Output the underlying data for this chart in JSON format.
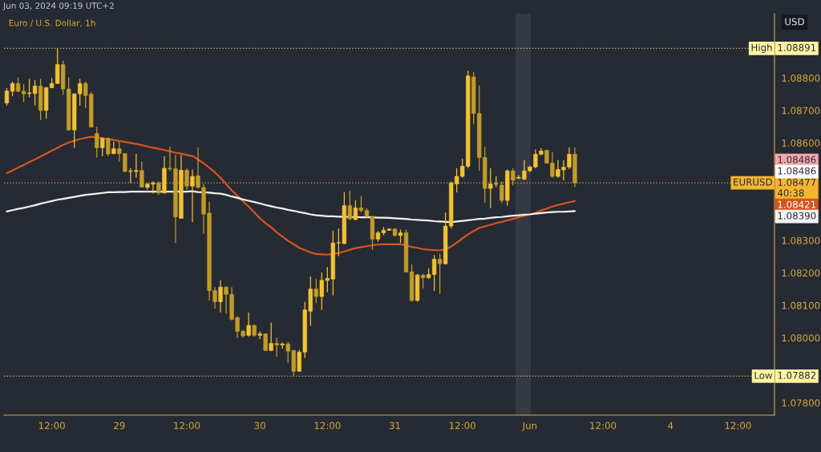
{
  "chart_data": {
    "type": "candlestick",
    "title": "Euro / U.S. Dollar, 1h",
    "ylabel": "USD",
    "annotations": [
      "Jun 03, 2024 09:19 UTC+2",
      "1.08891",
      "1.07882",
      "1.08477",
      "1.08421",
      "1.08390",
      "1.08486",
      "1.08486",
      "40:38"
    ],
    "colors": [
      "#f2c233",
      "#f2c233",
      "#c29b29",
      "#c29b29",
      "#f2c233",
      "#f2c233",
      "#c29b29",
      "#f2c233",
      "#f2c233",
      "#f2c233",
      "#c29b29",
      "#c29b29",
      "#f2c233",
      "#f2c233",
      "#c29b29",
      "#c29b29",
      "#c29b29",
      "#f2c233",
      "#c29b29",
      "#f2c233",
      "#c29b29",
      "#c29b29",
      "#f2c233",
      "#f2c233",
      "#c29b29",
      "#f2c233",
      "#f2c233",
      "#c29b29",
      "#f2c233",
      "#c29b29",
      "#c29b29",
      "#f2c233",
      "#c29b29",
      "#f2c233",
      "#c29b29",
      "#c29b29",
      "#c29b29",
      "#c29b29",
      "#f2c233",
      "#c29b29",
      "#c29b29",
      "#c29b29",
      "#c29b29",
      "#f2c233",
      "#c29b29",
      "#f2c233",
      "#c29b29",
      "#f2c233",
      "#c29b29",
      "#f2c233",
      "#c29b29",
      "#c29b29",
      "#f2c233",
      "#f2c233",
      "#f2c233",
      "#c29b29",
      "#f2c233",
      "#f2c233",
      "#f2c233",
      "#f2c233",
      "#f2c233",
      "#c29b29",
      "#f2c233",
      "#c29b29",
      "#c29b29",
      "#c29b29",
      "#f2c233",
      "#f2c233",
      "#f2c233",
      "#c29b29",
      "#f2c233",
      "#c29b29",
      "#c29b29",
      "#f2c233",
      "#c29b29",
      "#f2c233",
      "#f2c233",
      "#c29b29",
      "#f2c233",
      "#f2c233",
      "#f2c233",
      "#f2c233",
      "#f2c233",
      "#c29b29",
      "#c29b29",
      "#c29b29",
      "#f2c233",
      "#f2c233",
      "#c29b29",
      "#f2c233",
      "#c29b29",
      "#f2c233",
      "#f2c233",
      "#f2c233",
      "#f2c233",
      "#f2c233",
      "#c29b29",
      "#c29b29",
      "#f2c233",
      "#f2c233",
      "#f2c233",
      "#c29b29",
      null,
      null,
      null,
      null,
      null,
      null,
      null,
      null,
      null,
      null,
      null,
      null,
      null,
      null,
      null,
      null,
      null,
      null,
      null,
      null,
      null,
      null,
      null,
      null,
      null,
      null,
      null,
      null,
      null,
      null,
      null,
      null,
      null,
      null,
      null
    ],
    "categories": [
      null,
      null,
      null,
      null,
      null,
      null,
      null,
      null,
      "12:00",
      null,
      null,
      null,
      null,
      null,
      null,
      null,
      null,
      null,
      null,
      null,
      "29",
      null,
      null,
      null,
      null,
      null,
      null,
      null,
      null,
      null,
      null,
      null,
      "12:00",
      null,
      null,
      null,
      null,
      null,
      null,
      null,
      null,
      null,
      null,
      null,
      null,
      "30",
      null,
      null,
      null,
      null,
      null,
      null,
      null,
      null,
      null,
      null,
      null,
      "12:00",
      null,
      null,
      null,
      null,
      null,
      null,
      null,
      null,
      null,
      null,
      null,
      "31",
      null,
      null,
      null,
      null,
      null,
      null,
      null,
      null,
      null,
      null,
      null,
      "12:00",
      null,
      null,
      null,
      null,
      null,
      null,
      null,
      null,
      null,
      null,
      null,
      "Jun",
      null,
      null,
      null,
      null,
      null,
      null,
      null,
      null,
      null,
      null,
      null,
      null,
      "12:00",
      null,
      null,
      null,
      null,
      null,
      null,
      null,
      null,
      null,
      null,
      null,
      "4",
      null,
      null,
      null,
      null,
      null,
      null,
      null,
      null,
      null,
      null,
      null,
      "12:00",
      null,
      null,
      null,
      null,
      null,
      null
    ],
    "ohlc": [
      [
        1.08723,
        1.08769,
        1.08715,
        1.0876
      ],
      [
        1.08759,
        1.08789,
        1.08744,
        1.08783
      ],
      [
        1.08783,
        1.08802,
        1.08756,
        1.08759
      ],
      [
        1.08759,
        1.08781,
        1.08726,
        1.08751
      ],
      [
        1.08752,
        1.08797,
        1.0874,
        1.08754
      ],
      [
        1.08752,
        1.08793,
        1.08715,
        1.08775
      ],
      [
        1.08775,
        1.08797,
        1.0867,
        1.087
      ],
      [
        1.087,
        1.08773,
        1.08674,
        1.0877
      ],
      [
        1.0877,
        1.088,
        1.08769,
        1.08783
      ],
      [
        1.08783,
        1.08891,
        1.08781,
        1.08841
      ],
      [
        1.08841,
        1.08853,
        1.08748,
        1.08766
      ],
      [
        1.08766,
        1.08802,
        1.08637,
        1.0864
      ],
      [
        1.0864,
        1.08752,
        1.08584,
        1.08751
      ],
      [
        1.08751,
        1.08797,
        1.08715,
        1.08783
      ],
      [
        1.08783,
        1.08789,
        1.08707,
        1.08746
      ],
      [
        1.0875,
        1.08756,
        1.08648,
        1.08649
      ],
      [
        1.08629,
        1.08649,
        1.08555,
        1.08585
      ],
      [
        1.08585,
        1.08617,
        1.08559,
        1.08614
      ],
      [
        1.08614,
        1.08617,
        1.08559,
        1.08566
      ],
      [
        1.08567,
        1.08604,
        1.08565,
        1.08582
      ],
      [
        1.08582,
        1.08604,
        1.08543,
        1.08567
      ],
      [
        1.08567,
        1.08567,
        1.0851,
        1.08512
      ],
      [
        1.08512,
        1.08522,
        1.08477,
        1.08514
      ],
      [
        1.08512,
        1.08567,
        1.08493,
        1.08515
      ],
      [
        1.08515,
        1.08543,
        1.08463,
        1.08464
      ],
      [
        1.08463,
        1.08477,
        1.08456,
        1.08473
      ],
      [
        1.08473,
        1.08482,
        1.08444,
        1.08477
      ],
      [
        1.08477,
        1.08481,
        1.0844,
        1.08446
      ],
      [
        1.08446,
        1.08559,
        1.08444,
        1.08522
      ],
      [
        1.08522,
        1.08589,
        1.08514,
        1.0852
      ],
      [
        1.0852,
        1.08563,
        1.08292,
        1.08372
      ],
      [
        1.08368,
        1.08563,
        1.08367,
        1.08516
      ],
      [
        1.08516,
        1.08522,
        1.08456,
        1.08467
      ],
      [
        1.08467,
        1.08518,
        1.08356,
        1.08497
      ],
      [
        1.08499,
        1.08586,
        1.0846,
        1.08463
      ],
      [
        1.08463,
        1.08473,
        1.08321,
        1.08381
      ],
      [
        1.08384,
        1.08419,
        1.08115,
        1.08145
      ],
      [
        1.08145,
        1.08156,
        1.0809,
        1.08111
      ],
      [
        1.08111,
        1.08177,
        1.08078,
        1.08156
      ],
      [
        1.08156,
        1.0816,
        1.08074,
        1.08134
      ],
      [
        1.08134,
        1.08156,
        1.08053,
        1.08057
      ],
      [
        1.08062,
        1.08066,
        1.08,
        1.0802
      ],
      [
        1.0802,
        1.08025,
        1.08,
        1.08006
      ],
      [
        1.08008,
        1.08078,
        1.08004,
        1.08038
      ],
      [
        1.08038,
        1.08041,
        1.08004,
        1.08008
      ],
      [
        1.08008,
        1.0802,
        1.07996,
        1.08012
      ],
      [
        1.08012,
        1.08014,
        1.07959,
        1.07961
      ],
      [
        1.07961,
        1.08047,
        1.07959,
        1.07983
      ],
      [
        1.07983,
        1.08,
        1.07942,
        1.07978
      ],
      [
        1.07978,
        1.07986,
        1.07967,
        1.07981
      ],
      [
        1.07981,
        1.07987,
        1.07922,
        1.07959
      ],
      [
        1.07961,
        1.07963,
        1.07882,
        1.07897
      ],
      [
        1.07897,
        1.07963,
        1.07896,
        1.07956
      ],
      [
        1.07956,
        1.08111,
        1.07938,
        1.08086
      ],
      [
        1.08082,
        1.08189,
        1.08037,
        1.0815
      ],
      [
        1.0815,
        1.08181,
        1.08107,
        1.08127
      ],
      [
        1.08127,
        1.08201,
        1.08086,
        1.08177
      ],
      [
        1.08177,
        1.08218,
        1.0814,
        1.08183
      ],
      [
        1.08181,
        1.08329,
        1.08131,
        1.08292
      ],
      [
        1.08292,
        1.08337,
        1.08251,
        1.08293
      ],
      [
        1.0829,
        1.08448,
        1.08288,
        1.08407
      ],
      [
        1.08407,
        1.08452,
        1.08362,
        1.08366
      ],
      [
        1.08364,
        1.08423,
        1.08362,
        1.084
      ],
      [
        1.084,
        1.08436,
        1.08386,
        1.08392
      ],
      [
        1.08392,
        1.08399,
        1.0837,
        1.08374
      ],
      [
        1.08374,
        1.08374,
        1.08271,
        1.08304
      ],
      [
        1.08304,
        1.08329,
        1.08296,
        1.08323
      ],
      [
        1.08323,
        1.08341,
        1.08316,
        1.08331
      ],
      [
        1.08331,
        1.08337,
        1.08329,
        1.08335
      ],
      [
        1.08335,
        1.08337,
        1.08312,
        1.08315
      ],
      [
        1.08315,
        1.08333,
        1.08292,
        1.08323
      ],
      [
        1.08323,
        1.08333,
        1.08202,
        1.08203
      ],
      [
        1.08203,
        1.08226,
        1.08111,
        1.08115
      ],
      [
        1.08115,
        1.08197,
        1.08111,
        1.08193
      ],
      [
        1.08193,
        1.08197,
        1.08152,
        1.08185
      ],
      [
        1.08185,
        1.08214,
        1.08181,
        1.08195
      ],
      [
        1.08195,
        1.08255,
        1.08144,
        1.08242
      ],
      [
        1.08242,
        1.08259,
        1.08135,
        1.08228
      ],
      [
        1.08228,
        1.08386,
        1.08226,
        1.08344
      ],
      [
        1.08344,
        1.08481,
        1.08337,
        1.08477
      ],
      [
        1.08474,
        1.08522,
        1.08448,
        1.08497
      ],
      [
        1.08497,
        1.08551,
        1.08493,
        1.08528
      ],
      [
        1.08528,
        1.08822,
        1.08522,
        1.08806
      ],
      [
        1.08803,
        1.08818,
        1.08658,
        1.08691
      ],
      [
        1.08691,
        1.08777,
        1.08514,
        1.08555
      ],
      [
        1.08555,
        1.08588,
        1.08415,
        1.0846
      ],
      [
        1.0846,
        1.08522,
        1.08399,
        1.08473
      ],
      [
        1.08473,
        1.08497,
        1.08464,
        1.08474
      ],
      [
        1.0847,
        1.08481,
        1.08415,
        1.08423
      ],
      [
        1.08423,
        1.08518,
        1.08407,
        1.08514
      ],
      [
        1.08514,
        1.08522,
        1.08469,
        1.08485
      ],
      [
        1.08491,
        1.08501,
        1.08489,
        1.08494
      ],
      [
        1.08489,
        1.08547,
        1.08485,
        1.08514
      ],
      [
        1.08514,
        1.0853,
        1.0851,
        1.08526
      ],
      [
        1.08526,
        1.0858,
        1.08522,
        1.08565
      ],
      [
        1.08565,
        1.08584,
        1.08562,
        1.08575
      ],
      [
        1.08577,
        1.08579,
        1.08536,
        1.08538
      ],
      [
        1.08538,
        1.08571,
        1.08493,
        1.08497
      ],
      [
        1.08497,
        1.08547,
        1.08493,
        1.08518
      ],
      [
        1.08517,
        1.08547,
        1.08485,
        1.08525
      ],
      [
        1.08525,
        1.08586,
        1.0852,
        1.08565
      ],
      [
        1.08565,
        1.08586,
        1.08464,
        1.08477
      ],
      null,
      null,
      null,
      null,
      null,
      null,
      null,
      null,
      null,
      null,
      null,
      null,
      null,
      null,
      null,
      null,
      null,
      null,
      null,
      null,
      null,
      null,
      null,
      null,
      null,
      null,
      null,
      null,
      null,
      null,
      null,
      null,
      null,
      null,
      null
    ],
    "series": [
      {
        "type": "line",
        "color": "#d35522",
        "values": [
          1.08507,
          1.08515,
          1.08524,
          1.08532,
          1.08541,
          1.08549,
          1.08558,
          1.08567,
          1.08576,
          1.08585,
          1.08594,
          1.08601,
          1.08607,
          1.08612,
          1.08616,
          1.08619,
          1.08617,
          1.08614,
          1.08612,
          1.08609,
          1.08606,
          1.08603,
          1.086,
          1.08597,
          1.08593,
          1.08589,
          1.08585,
          1.08582,
          1.08578,
          1.08574,
          1.0857,
          1.08567,
          1.08563,
          1.0856,
          1.08549,
          1.08537,
          1.08524,
          1.08509,
          1.08493,
          1.08473,
          1.08454,
          1.08437,
          1.0842,
          1.08404,
          1.08386,
          1.08368,
          1.08353,
          1.0834,
          1.08325,
          1.08312,
          1.08299,
          1.08288,
          1.08277,
          1.0827,
          1.08263,
          1.08258,
          1.08257,
          1.08256,
          1.08258,
          1.08261,
          1.08266,
          1.08271,
          1.08276,
          1.08279,
          1.08282,
          1.08285,
          1.08287,
          1.08288,
          1.08288,
          1.08288,
          1.08288,
          1.08284,
          1.0828,
          1.08277,
          1.08273,
          1.08271,
          1.0827,
          1.08269,
          1.08273,
          1.08281,
          1.08293,
          1.08306,
          1.08318,
          1.08329,
          1.08338,
          1.08343,
          1.08348,
          1.08353,
          1.08357,
          1.08362,
          1.08366,
          1.08371,
          1.08375,
          1.0838,
          1.08385,
          1.08392,
          1.08398,
          1.08404,
          1.08409,
          1.08413,
          1.08417,
          1.08421,
          null,
          null,
          null,
          null,
          null,
          null,
          null,
          null,
          null,
          null,
          null,
          null,
          null,
          null,
          null,
          null,
          null,
          null,
          null,
          null,
          null,
          null,
          null,
          null,
          null,
          null,
          null,
          null,
          null,
          null,
          null,
          null,
          null,
          null,
          null
        ]
      },
      {
        "type": "line",
        "color": "#f2f2f2",
        "values": [
          1.08389,
          1.08393,
          1.08397,
          1.084,
          1.08404,
          1.08408,
          1.08413,
          1.08417,
          1.08421,
          1.08425,
          1.08428,
          1.08431,
          1.08434,
          1.08437,
          1.0844,
          1.08442,
          1.08444,
          1.08446,
          1.08448,
          1.08448,
          1.08449,
          1.08449,
          1.0845,
          1.0845,
          1.0845,
          1.0845,
          1.0845,
          1.0845,
          1.0845,
          1.0845,
          1.0845,
          1.0845,
          1.0845,
          1.08451,
          1.08449,
          1.08448,
          1.08447,
          1.08445,
          1.08444,
          1.0844,
          1.08435,
          1.08431,
          1.08426,
          1.08422,
          1.08418,
          1.08414,
          1.08409,
          1.08405,
          1.08401,
          1.08398,
          1.08394,
          1.08391,
          1.08387,
          1.08384,
          1.0838,
          1.08377,
          1.08376,
          1.08374,
          1.08374,
          1.08373,
          1.08373,
          1.08372,
          1.08372,
          1.08371,
          1.08371,
          1.08371,
          1.0837,
          1.0837,
          1.08369,
          1.08368,
          1.08367,
          1.08366,
          1.08364,
          1.08363,
          1.08362,
          1.08361,
          1.08359,
          1.08358,
          1.08357,
          1.08356,
          1.08358,
          1.0836,
          1.08362,
          1.08364,
          1.08366,
          1.08367,
          1.08369,
          1.08371,
          1.08372,
          1.08374,
          1.08376,
          1.08377,
          1.08379,
          1.0838,
          1.08382,
          1.08384,
          1.08386,
          1.08387,
          1.08388,
          1.08388,
          1.08389,
          1.0839,
          null,
          null,
          null,
          null,
          null,
          null,
          null,
          null,
          null,
          null,
          null,
          null,
          null,
          null,
          null,
          null,
          null,
          null,
          null,
          null,
          null,
          null,
          null,
          null,
          null,
          null,
          null,
          null,
          null,
          null,
          null,
          null,
          null,
          null,
          null
        ]
      }
    ],
    "ref_lines": [
      {
        "axis": "y",
        "value": 1.08891,
        "label": "High",
        "color": "#fff3a3",
        "line_style": "dotted"
      },
      {
        "axis": "y",
        "value": 1.07882,
        "label": "Low",
        "color": "#fff3a3",
        "line_style": "dotted"
      },
      {
        "axis": "y",
        "value": 1.08477,
        "label": "EURUSD",
        "color": "#f2b431",
        "line_style": "dotted"
      }
    ],
    "ylim": [
      1.07762,
      1.08998
    ],
    "yticks": [
      {
        "value": 1.078,
        "label": "1.07800"
      },
      {
        "value": 1.08,
        "label": "1.08000"
      },
      {
        "value": 1.081,
        "label": "1.08100"
      },
      {
        "value": 1.082,
        "label": "1.08200"
      },
      {
        "value": 1.083,
        "label": "1.08300"
      },
      {
        "value": 1.086,
        "label": "1.08600"
      },
      {
        "value": 1.087,
        "label": "1.08700"
      },
      {
        "value": 1.088,
        "label": "1.08800"
      }
    ]
  }
}
